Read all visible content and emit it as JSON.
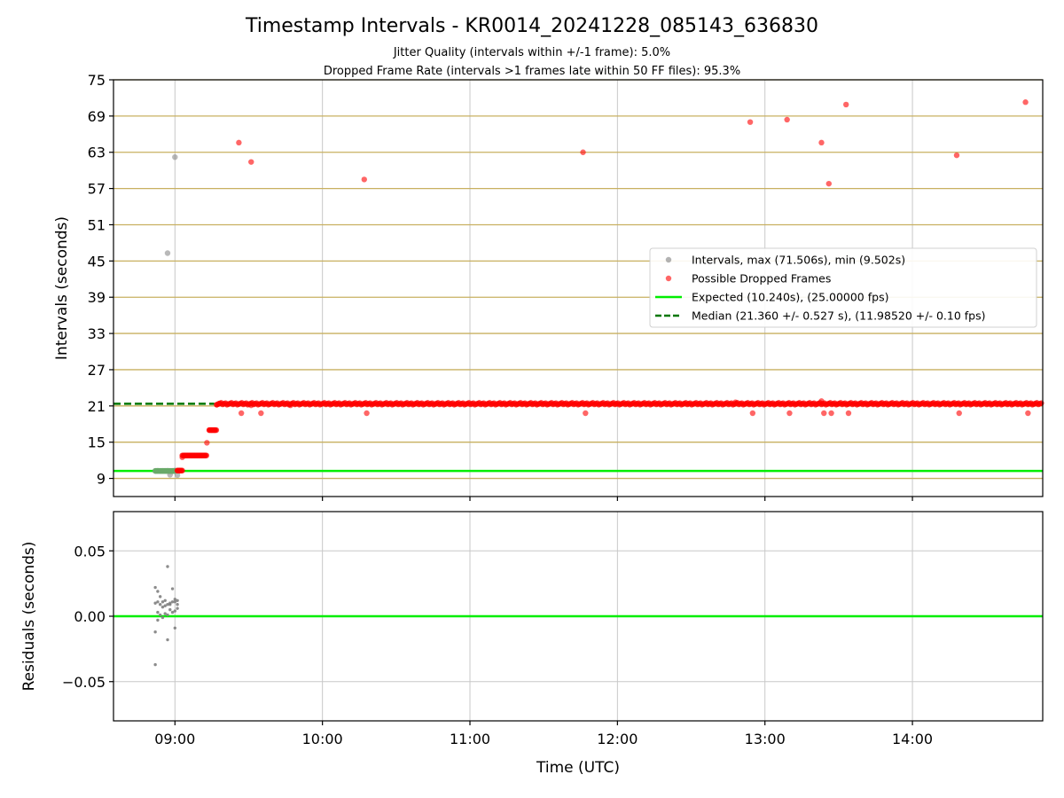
{
  "figure": {
    "title": "Timestamp Intervals - KR0014_20241228_085143_636830",
    "subtitle_lines": [
      "Jitter Quality (intervals within +/-1 frame): 5.0%",
      "Dropped Frame Rate (intervals >1 frames late within 50 FF files): 95.3%"
    ]
  },
  "colors": {
    "intervals": "#808080",
    "dropped": "#ff0000",
    "expected": "#00ee00",
    "median": "#007700",
    "hgrid_top": "#c8b060",
    "grid": "#c8c8c8"
  },
  "chart_data": [
    {
      "type": "scatter",
      "id": "top",
      "ylabel": "Intervals (seconds)",
      "xlabel": "",
      "x_unit": "time (UTC)",
      "xlim": [
        "08:35",
        "14:53"
      ],
      "ylim": [
        6,
        75
      ],
      "yticks": [
        9,
        15,
        21,
        27,
        33,
        39,
        45,
        51,
        57,
        63,
        69,
        75
      ],
      "xticks": [
        "09:00",
        "10:00",
        "11:00",
        "12:00",
        "13:00",
        "14:00"
      ],
      "grid": true,
      "legend_position": "center-right",
      "legend": [
        {
          "label": "Intervals, max (71.506s), min (9.502s)",
          "kind": "marker",
          "color_key": "intervals"
        },
        {
          "label": "Possible Dropped Frames",
          "kind": "marker",
          "color_key": "dropped"
        },
        {
          "label": "Expected (10.240s), (25.00000 fps)",
          "kind": "line",
          "color_key": "expected"
        },
        {
          "label": "Median (21.360 +/- 0.527 s), (11.98520 +/- 0.10 fps)",
          "kind": "dashed",
          "color_key": "median"
        }
      ],
      "lines": {
        "expected": {
          "y": 10.24,
          "x_from": "08:35",
          "x_to": "14:53"
        },
        "median": {
          "y": 21.36,
          "x_from": "08:35",
          "x_to": "09:16"
        }
      },
      "series": [
        {
          "name": "Intervals, max (71.506s), min (9.502s)",
          "color_key": "intervals",
          "points": [
            [
              "08:52",
              10.24
            ],
            [
              "08:53",
              10.26
            ],
            [
              "08:54",
              10.23
            ],
            [
              "08:55",
              10.25
            ],
            [
              "08:56",
              10.24
            ],
            [
              "08:57",
              10.27
            ],
            [
              "08:58",
              10.22
            ],
            [
              "08:58",
              9.6
            ],
            [
              "08:59",
              10.25
            ],
            [
              "09:00",
              10.24
            ],
            [
              "09:01",
              9.55
            ],
            [
              "09:00",
              10.3
            ],
            [
              "08:59",
              10.2
            ],
            [
              "08:57",
              46.3
            ],
            [
              "09:00",
              62.2
            ]
          ]
        },
        {
          "name": "Possible Dropped Frames",
          "color_key": "dropped",
          "points": [
            [
              "09:01",
              10.3
            ],
            [
              "09:02",
              10.3
            ],
            [
              "09:03",
              10.3
            ],
            [
              "09:03",
              12.5
            ],
            [
              "09:04",
              12.8
            ],
            [
              "09:05",
              12.8
            ],
            [
              "09:06",
              12.8
            ],
            [
              "09:07",
              12.8
            ],
            [
              "09:08",
              12.8
            ],
            [
              "09:09",
              12.8
            ],
            [
              "09:10",
              12.8
            ],
            [
              "09:11",
              12.8
            ],
            [
              "09:12",
              12.8
            ],
            [
              "09:13",
              14.9
            ],
            [
              "09:14",
              17.0
            ],
            [
              "09:15",
              17.0
            ],
            [
              "09:16",
              17.0
            ],
            [
              "09:17",
              21.2
            ],
            [
              "09:18",
              21.4
            ],
            [
              "09:26",
              64.6
            ],
            [
              "09:31",
              61.4
            ],
            [
              "10:17",
              58.5
            ],
            [
              "11:46",
              63.0
            ],
            [
              "12:54",
              68.0
            ],
            [
              "13:09",
              68.4
            ],
            [
              "13:23",
              64.6
            ],
            [
              "13:26",
              57.8
            ],
            [
              "13:33",
              70.9
            ],
            [
              "14:18",
              62.5
            ],
            [
              "14:46",
              71.3
            ],
            [
              "09:27",
              19.8
            ],
            [
              "09:31",
              21.1
            ],
            [
              "09:35",
              19.8
            ],
            [
              "09:47",
              21.1
            ],
            [
              "10:18",
              19.8
            ],
            [
              "11:47",
              19.8
            ],
            [
              "12:55",
              19.8
            ],
            [
              "13:10",
              19.8
            ],
            [
              "13:23",
              21.8
            ],
            [
              "13:24",
              19.8
            ],
            [
              "13:27",
              19.8
            ],
            [
              "13:34",
              19.8
            ],
            [
              "14:19",
              19.8
            ],
            [
              "14:47",
              19.8
            ],
            [
              "12:48",
              21.6
            ]
          ],
          "dense_band": {
            "y": 21.36,
            "x_from": "09:17",
            "x_to": "14:53",
            "every_minutes": 0.6
          }
        }
      ]
    },
    {
      "type": "scatter",
      "id": "bottom",
      "ylabel": "Residuals (seconds)",
      "xlabel": "Time (UTC)",
      "xlim": [
        "08:35",
        "14:53"
      ],
      "ylim": [
        -0.08,
        0.08
      ],
      "yticks": [
        -0.05,
        0.0,
        0.05
      ],
      "ytick_labels": [
        "−0.05",
        "0.00",
        "0.05"
      ],
      "xticks": [
        "09:00",
        "10:00",
        "11:00",
        "12:00",
        "13:00",
        "14:00"
      ],
      "grid": true,
      "lines": {
        "zero": {
          "y": 0.0
        }
      },
      "series": [
        {
          "name": "residuals",
          "color_key": "intervals",
          "points": [
            [
              "08:52",
              0.022
            ],
            [
              "08:52",
              -0.037
            ],
            [
              "08:52",
              -0.012
            ],
            [
              "08:52",
              0.01
            ],
            [
              "08:53",
              0.019
            ],
            [
              "08:53",
              -0.003
            ],
            [
              "08:53",
              0.003
            ],
            [
              "08:53",
              0.011
            ],
            [
              "08:54",
              0.009
            ],
            [
              "08:54",
              0.015
            ],
            [
              "08:54",
              0.001
            ],
            [
              "08:55",
              0.007
            ],
            [
              "08:55",
              0.011
            ],
            [
              "08:55",
              -0.001
            ],
            [
              "08:56",
              0.008
            ],
            [
              "08:56",
              0.002
            ],
            [
              "08:56",
              0.012
            ],
            [
              "08:57",
              0.038
            ],
            [
              "08:57",
              0.009
            ],
            [
              "08:57",
              -0.018
            ],
            [
              "08:57",
              0.001
            ],
            [
              "08:58",
              0.01
            ],
            [
              "08:58",
              0.005
            ],
            [
              "08:58",
              0.009
            ],
            [
              "08:59",
              0.021
            ],
            [
              "08:59",
              0.003
            ],
            [
              "08:59",
              0.011
            ],
            [
              "09:00",
              0.011
            ],
            [
              "09:00",
              0.013
            ],
            [
              "09:00",
              -0.009
            ],
            [
              "09:00",
              0.004
            ],
            [
              "09:01",
              0.009
            ],
            [
              "09:01",
              0.006
            ],
            [
              "09:01",
              0.012
            ]
          ]
        }
      ]
    }
  ]
}
